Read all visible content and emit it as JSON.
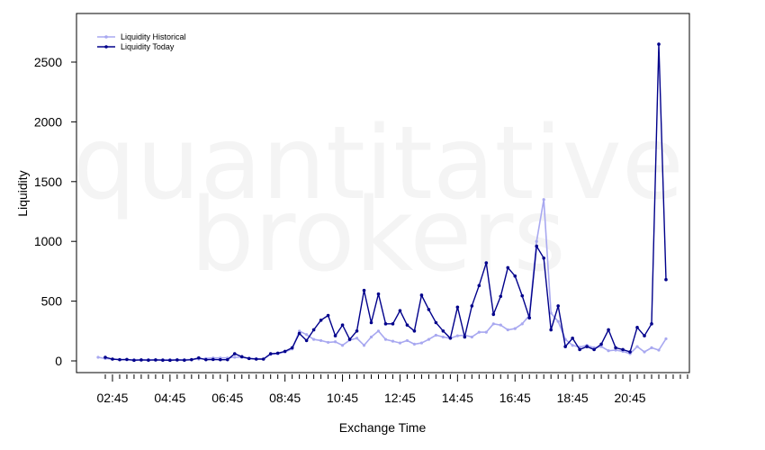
{
  "watermark": {
    "line1": "quantitative",
    "line2": "brokers"
  },
  "colors": {
    "historical": "#a8a8f0",
    "today": "#00008b",
    "axis": "#000000"
  },
  "chart_data": {
    "type": "line",
    "xlabel": "Exchange Time",
    "ylabel": "Liquidity",
    "x_tick_labels": [
      "02:45",
      "04:45",
      "06:45",
      "08:45",
      "10:45",
      "12:45",
      "14:45",
      "16:45",
      "18:45",
      "20:45"
    ],
    "x_tick_positions": [
      3,
      11,
      19,
      27,
      35,
      43,
      51,
      59,
      67,
      75
    ],
    "x_minor_ticks": [
      2,
      3,
      4,
      5,
      6,
      7,
      8,
      9,
      10,
      11,
      12,
      13,
      14,
      15,
      16,
      17,
      18,
      19,
      20,
      21,
      22,
      23,
      24,
      25,
      26,
      27,
      28,
      29,
      30,
      31,
      32,
      33,
      34,
      35,
      36,
      37,
      38,
      39,
      40,
      41,
      42,
      43,
      44,
      45,
      46,
      47,
      48,
      49,
      50,
      51,
      52,
      53,
      54,
      55,
      56,
      57,
      58,
      59,
      60,
      61,
      62,
      63,
      64,
      65,
      66,
      67,
      68,
      69,
      70,
      71,
      72,
      73,
      74,
      75,
      76,
      77,
      78,
      79,
      80,
      81,
      82,
      83,
      84
    ],
    "y_ticks": [
      0,
      500,
      1000,
      1500,
      2000,
      2500
    ],
    "xlim": [
      -0.5,
      83.5
    ],
    "ylim": [
      -100,
      2900
    ],
    "legend_position": "top-left",
    "series": [
      {
        "name": "Liquidity Historical",
        "color": "#a8a8f0",
        "values": [
          30,
          20,
          15,
          12,
          10,
          10,
          10,
          10,
          10,
          10,
          10,
          10,
          10,
          12,
          15,
          20,
          25,
          25,
          25,
          30,
          30,
          20,
          18,
          15,
          55,
          60,
          75,
          100,
          250,
          220,
          180,
          170,
          155,
          160,
          130,
          175,
          190,
          130,
          200,
          250,
          180,
          165,
          150,
          170,
          140,
          150,
          180,
          215,
          200,
          190,
          210,
          215,
          200,
          240,
          240,
          310,
          300,
          260,
          270,
          310,
          380,
          1000,
          1350,
          400,
          330,
          180,
          130,
          115,
          130,
          110,
          120,
          85,
          90,
          80,
          60,
          120,
          75,
          110,
          90,
          185
        ],
        "x_start": 0
      },
      {
        "name": "Liquidity Today",
        "color": "#00008b",
        "values": [
          30,
          15,
          10,
          12,
          5,
          8,
          6,
          8,
          6,
          5,
          8,
          6,
          10,
          25,
          10,
          12,
          10,
          10,
          60,
          35,
          20,
          15,
          15,
          60,
          65,
          80,
          110,
          230,
          170,
          260,
          340,
          380,
          210,
          300,
          180,
          250,
          590,
          320,
          560,
          310,
          310,
          420,
          300,
          250,
          550,
          430,
          320,
          250,
          190,
          450,
          200,
          460,
          630,
          820,
          390,
          540,
          780,
          710,
          545,
          360,
          960,
          860,
          260,
          460,
          120,
          190,
          95,
          120,
          95,
          140,
          260,
          110,
          95,
          75,
          280,
          210,
          310,
          2650,
          680
        ],
        "x_start": 1
      }
    ]
  }
}
